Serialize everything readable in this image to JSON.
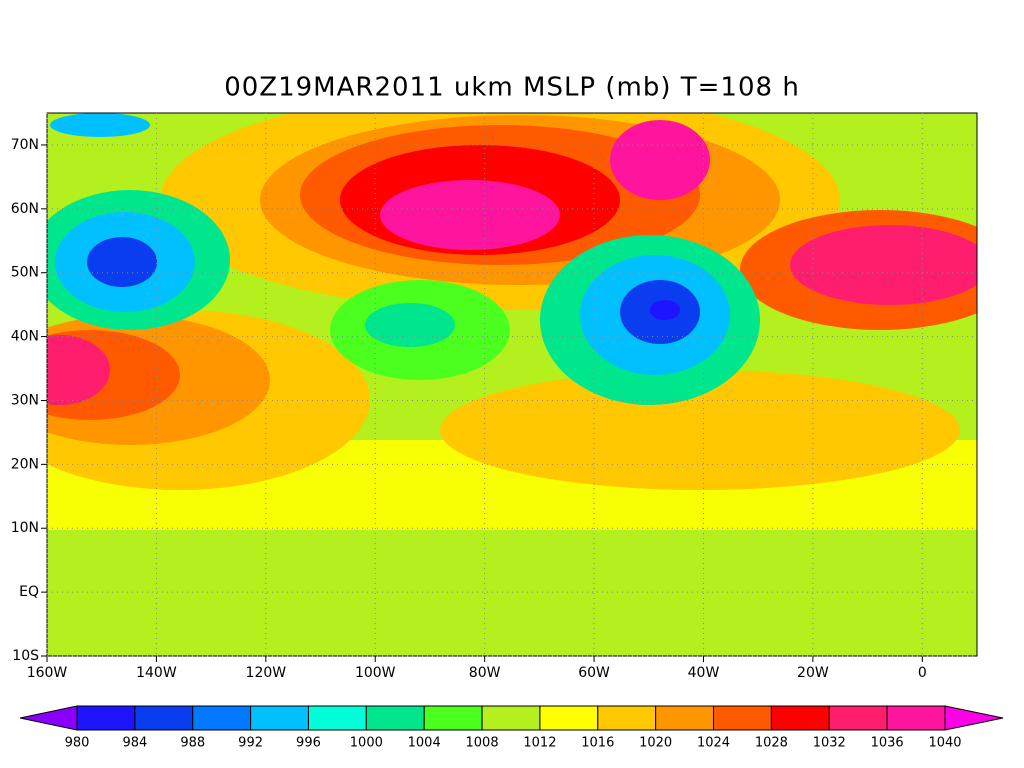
{
  "title": "00Z19MAR2011 ukm MSLP (mb) T=108 h",
  "map": {
    "xlim": [
      -160,
      10
    ],
    "ylim": [
      -10,
      75
    ],
    "xticks": [
      {
        "value": -160,
        "label": "160W"
      },
      {
        "value": -140,
        "label": "140W"
      },
      {
        "value": -120,
        "label": "120W"
      },
      {
        "value": -100,
        "label": "100W"
      },
      {
        "value": -80,
        "label": "80W"
      },
      {
        "value": -60,
        "label": "60W"
      },
      {
        "value": -40,
        "label": "40W"
      },
      {
        "value": -20,
        "label": "20W"
      },
      0
    ],
    "yticks": [
      {
        "value": -10,
        "label": "10S"
      },
      {
        "value": 0,
        "label": "EQ"
      },
      {
        "value": 10,
        "label": "10N"
      },
      {
        "value": 20,
        "label": "20N"
      },
      {
        "value": 30,
        "label": "30N"
      },
      {
        "value": 40,
        "label": "40N"
      },
      {
        "value": 50,
        "label": "50N"
      },
      {
        "value": 60,
        "label": "60N"
      },
      {
        "value": 70,
        "label": "70N"
      }
    ]
  },
  "colorbar": {
    "levels": [
      980,
      984,
      988,
      992,
      996,
      1000,
      1004,
      1008,
      1012,
      1016,
      1020,
      1024,
      1028,
      1032,
      1036,
      1040
    ],
    "colors": [
      "#8a00ff",
      "#1e14ff",
      "#0a3cf0",
      "#0078ff",
      "#00c0ff",
      "#00ffd8",
      "#00e68c",
      "#4bff1e",
      "#b4f01e",
      "#ffff00",
      "#ffc800",
      "#ff9600",
      "#ff5a00",
      "#ff0000",
      "#ff1e6e",
      "#ff149e",
      "#ff00e6"
    ]
  }
}
